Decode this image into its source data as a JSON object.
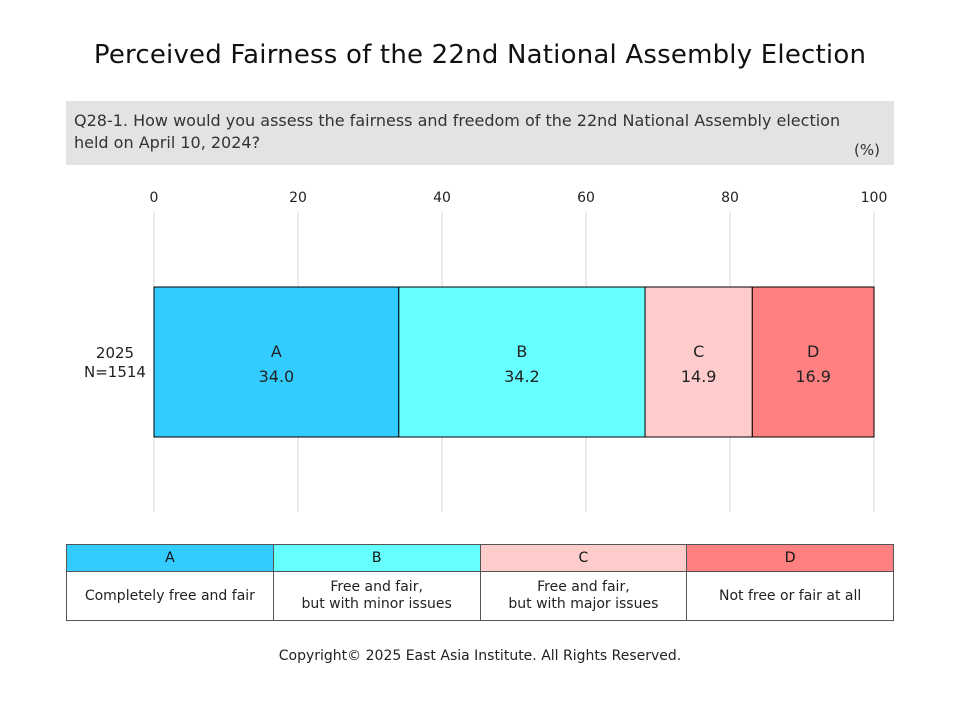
{
  "title": "Perceived Fairness of the 22nd National Assembly Election",
  "question": {
    "text": "Q28-1. How would you assess the fairness and freedom of the 22nd National Assembly election held on April 10, 2024?",
    "unit": "(%)"
  },
  "chart_data": {
    "type": "bar",
    "orientation": "horizontal-stacked",
    "x_ticks": [
      "0",
      "20",
      "40",
      "60",
      "80",
      "100"
    ],
    "xlim": [
      0,
      100
    ],
    "grid": true,
    "row_label": [
      "2025",
      "N=1514"
    ],
    "series": [
      {
        "name": "A",
        "value": 34.0,
        "label": "34.0",
        "color": "#33ccff"
      },
      {
        "name": "B",
        "value": 34.2,
        "label": "34.2",
        "color": "#66ffff"
      },
      {
        "name": "C",
        "value": 14.9,
        "label": "14.9",
        "color": "#ffcccc"
      },
      {
        "name": "D",
        "value": 16.9,
        "label": "16.9",
        "color": "#ff8080"
      }
    ]
  },
  "legend": [
    {
      "key": "A",
      "desc": [
        "Completely free and fair"
      ],
      "color": "#33ccff"
    },
    {
      "key": "B",
      "desc": [
        "Free and fair,",
        "but with minor issues"
      ],
      "color": "#66ffff"
    },
    {
      "key": "C",
      "desc": [
        "Free and fair,",
        "but with major issues"
      ],
      "color": "#ffcccc"
    },
    {
      "key": "D",
      "desc": [
        "Not free or fair  at all"
      ],
      "color": "#ff8080"
    }
  ],
  "copyright": "Copyright© 2025 East Asia Institute. All Rights Reserved."
}
